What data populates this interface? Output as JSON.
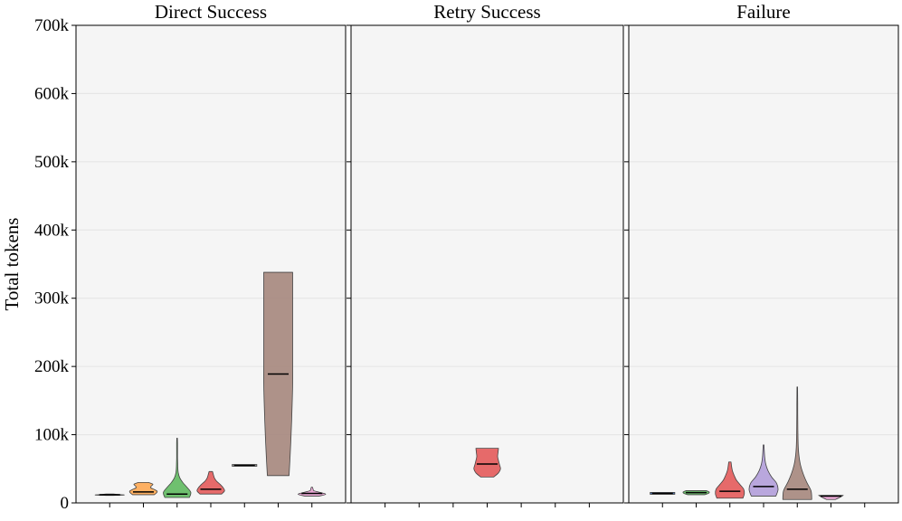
{
  "chart_data": {
    "type": "violin",
    "ylabel": "Total tokens",
    "ylim": [
      0,
      700000
    ],
    "yticks": [
      {
        "value": 0,
        "label": "0"
      },
      {
        "value": 100000,
        "label": "100k"
      },
      {
        "value": 200000,
        "label": "200k"
      },
      {
        "value": 300000,
        "label": "300k"
      },
      {
        "value": 400000,
        "label": "400k"
      },
      {
        "value": 500000,
        "label": "500k"
      },
      {
        "value": 600000,
        "label": "600k"
      },
      {
        "value": 700000,
        "label": "700k"
      }
    ],
    "grid": "y",
    "categories_per_panel": 7,
    "panels": [
      {
        "title": "Direct Success",
        "violins": [
          {
            "slot": 0,
            "color": "#4c72b0",
            "min": 11000,
            "max": 13000,
            "median": 12000,
            "profile": [
              0.25,
              1.0,
              0.6,
              0.25
            ]
          },
          {
            "slot": 1,
            "color": "#ffa64d",
            "min": 12000,
            "max": 30000,
            "median": 16000,
            "profile": [
              0.75,
              0.9,
              0.95,
              0.75,
              0.5,
              0.55,
              0.65,
              0.35
            ]
          },
          {
            "slot": 2,
            "color": "#5cb85c",
            "min": 8000,
            "max": 95000,
            "median": 13000,
            "profile": [
              0.85,
              0.95,
              0.7,
              0.4,
              0.18,
              0.08,
              0.05,
              0.04,
              0.03,
              0.03,
              0.03,
              0.03,
              0.02
            ]
          },
          {
            "slot": 3,
            "color": "#e45756",
            "min": 13000,
            "max": 46000,
            "median": 20000,
            "profile": [
              0.75,
              0.95,
              0.85,
              0.65,
              0.4,
              0.25,
              0.18,
              0.12
            ]
          },
          {
            "slot": 4,
            "color": "#8c8c8c",
            "min": 55000,
            "max": 55000,
            "median": 55000,
            "profile": [
              0.85,
              0.85
            ]
          },
          {
            "slot": 5,
            "color": "#a4847a",
            "min": 40000,
            "max": 338000,
            "median": 189000,
            "profile": [
              0.75,
              0.82,
              0.88,
              0.93,
              0.97,
              1.0,
              1.0,
              1.0,
              1.0,
              1.0,
              1.0,
              1.0
            ]
          },
          {
            "slot": 6,
            "color": "#e69ecf",
            "min": 10000,
            "max": 23000,
            "median": 14000,
            "profile": [
              0.5,
              0.95,
              0.6,
              0.15,
              0.08,
              0.04
            ]
          }
        ]
      },
      {
        "title": "Retry Success",
        "violins": [
          {
            "slot": 3,
            "color": "#e45756",
            "min": 38000,
            "max": 80000,
            "median": 57000,
            "profile": [
              0.45,
              0.78,
              0.92,
              0.85,
              0.78,
              0.72,
              0.75,
              0.78
            ]
          }
        ]
      },
      {
        "title": "Failure",
        "violins": [
          {
            "slot": 0,
            "color": "#4c72b0",
            "min": 14000,
            "max": 14000,
            "median": 14000,
            "profile": [
              0.85,
              0.85
            ]
          },
          {
            "slot": 1,
            "color": "#5cb85c",
            "min": 12000,
            "max": 18000,
            "median": 15000,
            "profile": [
              0.6,
              0.85,
              0.9,
              0.7
            ]
          },
          {
            "slot": 2,
            "color": "#e45756",
            "min": 7000,
            "max": 60000,
            "median": 17000,
            "profile": [
              0.9,
              1.0,
              0.95,
              0.7,
              0.45,
              0.3,
              0.18,
              0.12,
              0.08
            ]
          },
          {
            "slot": 3,
            "color": "#b19cd9",
            "min": 10000,
            "max": 85000,
            "median": 24000,
            "profile": [
              0.85,
              1.0,
              0.9,
              0.55,
              0.3,
              0.15,
              0.08,
              0.05,
              0.03
            ]
          },
          {
            "slot": 4,
            "color": "#a4847a",
            "min": 5000,
            "max": 170000,
            "median": 20000,
            "profile": [
              1.0,
              0.95,
              0.65,
              0.4,
              0.22,
              0.12,
              0.07,
              0.05,
              0.04,
              0.035,
              0.03,
              0.03,
              0.025,
              0.02
            ]
          },
          {
            "slot": 5,
            "color": "#e69ecf",
            "min": 5000,
            "max": 11000,
            "median": 10000,
            "profile": [
              0.3,
              0.6,
              0.85
            ]
          }
        ]
      }
    ]
  }
}
